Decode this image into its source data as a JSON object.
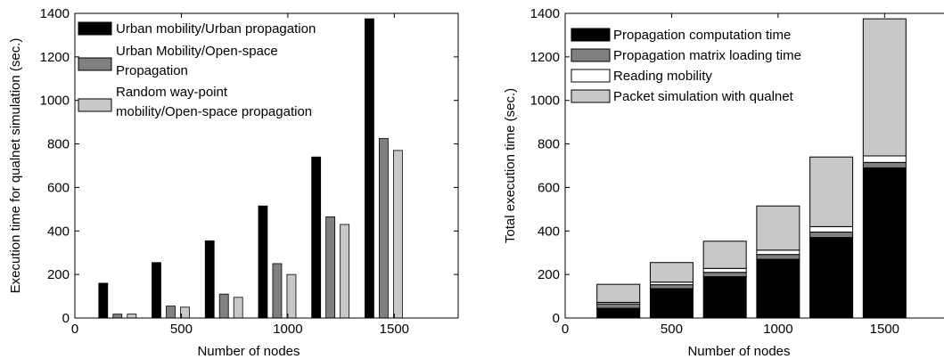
{
  "chart_data": [
    {
      "type": "bar",
      "title": "",
      "xlabel": "Number of nodes",
      "ylabel": "Execution time for qualnet simulation (sec.)",
      "xlim": [
        0,
        1800
      ],
      "ylim": [
        0,
        1400
      ],
      "xticks": [
        0,
        500,
        1000,
        1500
      ],
      "yticks": [
        0,
        200,
        400,
        600,
        800,
        1000,
        1200,
        1400
      ],
      "x": [
        200,
        450,
        700,
        950,
        1200,
        1450
      ],
      "legend_position": "top-left",
      "series": [
        {
          "name": "Urban mobility/Urban propagation",
          "color": "#000000",
          "values": [
            160,
            255,
            355,
            515,
            740,
            1375
          ]
        },
        {
          "name": "Urban Mobility/Open-space Propagation",
          "color": "#808080",
          "values": [
            18,
            55,
            110,
            250,
            465,
            825
          ]
        },
        {
          "name": "Random way-point mobility/Open-space propagation",
          "color": "#c8c8c8",
          "values": [
            18,
            50,
            95,
            200,
            430,
            770
          ]
        }
      ],
      "legend_lines": [
        [
          "Urban mobility/Urban propagation"
        ],
        [
          "Urban Mobility/Open-space",
          "Propagation"
        ],
        [
          "Random way-point",
          "mobility/Open-space propagation"
        ]
      ]
    },
    {
      "type": "bar",
      "stacked": true,
      "title": "",
      "xlabel": "Number of nodes",
      "ylabel": "Total execution time (sec.)",
      "xlim": [
        0,
        1800
      ],
      "ylim": [
        0,
        1400
      ],
      "xticks": [
        0,
        500,
        1000,
        1500
      ],
      "yticks": [
        0,
        200,
        400,
        600,
        800,
        1000,
        1200,
        1400
      ],
      "x": [
        250,
        500,
        750,
        1000,
        1250,
        1500
      ],
      "legend_position": "top-left",
      "series": [
        {
          "name": "Propagation computation time",
          "color": "#000000",
          "values": [
            45,
            135,
            190,
            270,
            370,
            690
          ]
        },
        {
          "name": "Propagation matrix loading time",
          "color": "#808080",
          "values": [
            20,
            18,
            20,
            22,
            25,
            25
          ]
        },
        {
          "name": "Reading mobility",
          "color": "#ffffff",
          "values": [
            7,
            12,
            18,
            20,
            25,
            30
          ]
        },
        {
          "name": "Packet simulation with qualnet",
          "color": "#c8c8c8",
          "values": [
            83,
            90,
            125,
            203,
            320,
            630
          ]
        }
      ]
    }
  ]
}
